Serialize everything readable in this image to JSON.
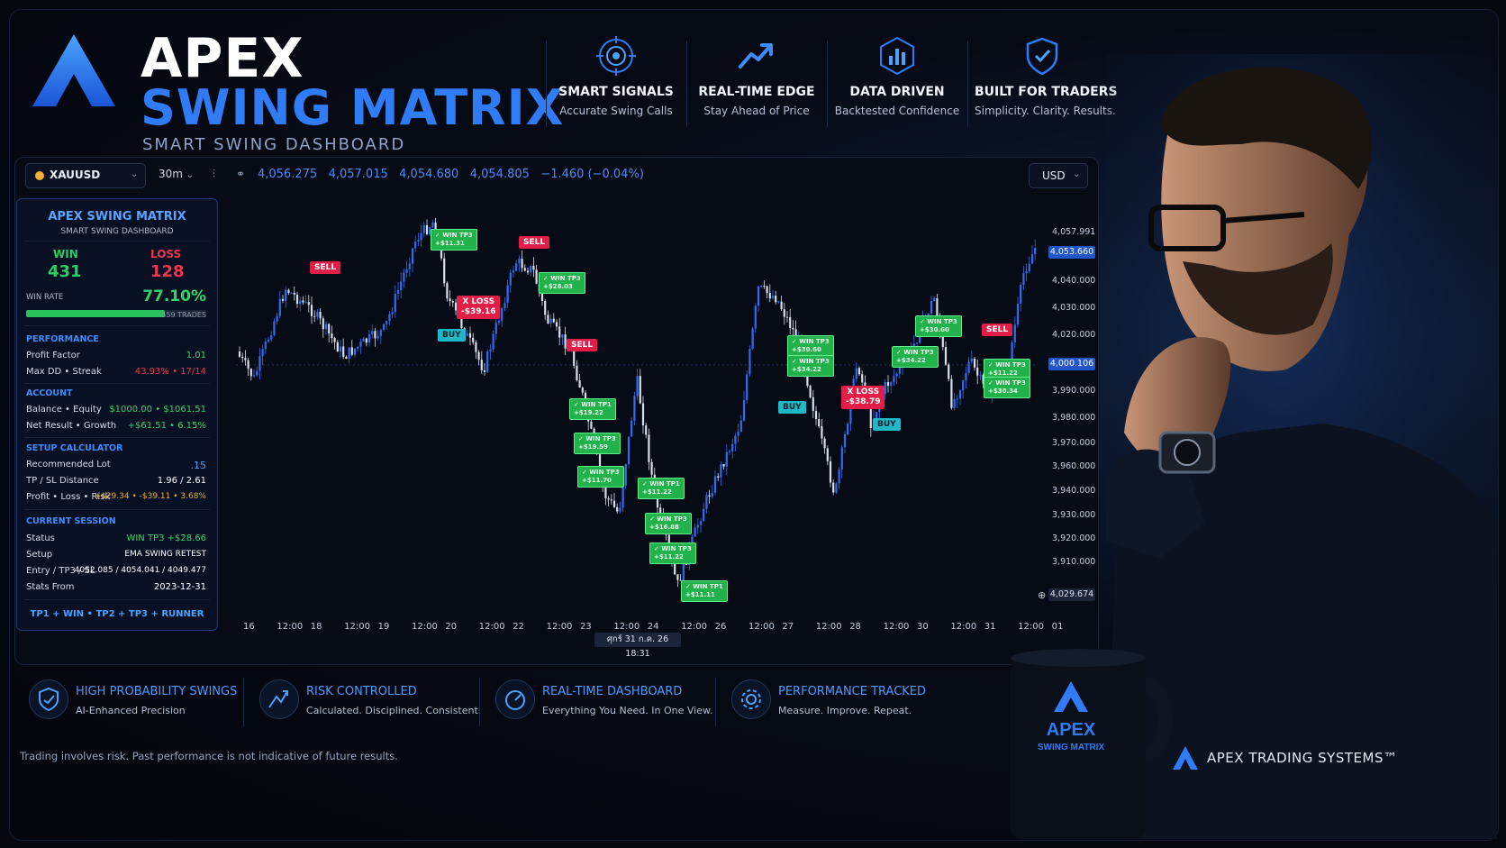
{
  "brand": {
    "line1": "APEX",
    "line2": "SWING MATRIX",
    "tagline": "SMART SWING DASHBOARD"
  },
  "features": [
    {
      "title": "SMART SIGNALS",
      "sub": "Accurate Swing Calls",
      "icon": "target-icon"
    },
    {
      "title": "REAL-TIME EDGE",
      "sub": "Stay Ahead of Price",
      "icon": "trend-up-icon"
    },
    {
      "title": "DATA DRIVEN",
      "sub": "Backtested Confidence",
      "icon": "bar-chart-icon"
    },
    {
      "title": "BUILT FOR TRADERS",
      "sub": "Simplicity. Clarity. Results.",
      "icon": "shield-check-icon"
    }
  ],
  "toolbar": {
    "symbol": "XAUUSD",
    "timeframe": "30m",
    "open": "4,056.275",
    "high": "4,057.015",
    "low": "4,054.680",
    "close": "4,054.805",
    "change": "−1.460 (−0.04%)",
    "currency": "USD"
  },
  "stats": {
    "title": "APEX SWING MATRIX",
    "subtitle": "SMART SWING DASHBOARD",
    "win_label": "WIN",
    "win": "431",
    "loss_label": "LOSS",
    "loss": "128",
    "winrate_label": "WIN RATE",
    "winrate": "77.10%",
    "winrate_fraction": 0.771,
    "trades": "559 TRADES",
    "performance": {
      "title": "PERFORMANCE",
      "pf_label": "Profit Factor",
      "pf": "1.01",
      "dd_label": "Max DD • Streak",
      "dd": "43.93% • 17/14"
    },
    "account": {
      "title": "ACCOUNT",
      "bal_label": "Balance • Equity",
      "bal": "$1000.00 • $1061.51",
      "net_label": "Net Result • Growth",
      "net": "+$61.51 • 6.15%"
    },
    "setup": {
      "title": "SETUP CALCULATOR",
      "lot_label": "Recommended Lot",
      "lot": ".15",
      "tpsl_label": "TP / SL Distance",
      "tpsl": "1.96 / 2.61",
      "plr_label": "Profit • Loss • Risk",
      "plr": "+$29.34 • -$39.11 • 3.68%"
    },
    "session": {
      "title": "CURRENT SESSION",
      "status_label": "Status",
      "status": "WIN TP3 +$28.66",
      "setup_label": "Setup",
      "setup": "EMA SWING RETEST",
      "ets_label": "Entry / TP3 / SL",
      "ets": "4052.085 / 4054.041 / 4049.477",
      "from_label": "Stats From",
      "from": "2023-12-31"
    },
    "footer": "TP1 + WIN • TP2 + TP3 + RUNNER"
  },
  "chart_data": {
    "type": "candlestick",
    "y_ticks": [
      "4,057.991",
      "4,040.000",
      "4,030.000",
      "4,020.000",
      "3,990.000",
      "3,980.000",
      "3,970.000",
      "3,960.000",
      "3,940.000",
      "3,930.000",
      "3,920.000",
      "3,910.000"
    ],
    "price_tag": "4,053.660",
    "mid_tag": "4,000.106",
    "bottom_tag": "4,029.674",
    "x_ticks": [
      "16",
      "12:00",
      "18",
      "12:00",
      "19",
      "12:00",
      "20",
      "12:00",
      "22",
      "12:00",
      "23",
      "12:00",
      "24",
      "12:00",
      "26",
      "12:00",
      "27",
      "12:00",
      "28",
      "12:00",
      "30",
      "12:00",
      "31",
      "12:00",
      "01"
    ],
    "crosshair_time": "ศุกร์ 31 ก.ค. 26   18:31",
    "signals": [
      {
        "kind": "sell",
        "text": "SELL"
      },
      {
        "kind": "sell",
        "text": "SELL"
      },
      {
        "kind": "sell",
        "text": "SELL"
      },
      {
        "kind": "sell",
        "text": "SELL"
      },
      {
        "kind": "buy",
        "text": "BUY"
      },
      {
        "kind": "buy",
        "text": "BUY"
      },
      {
        "kind": "buy",
        "text": "BUY"
      },
      {
        "kind": "loss",
        "text": "X LOSS",
        "amt": "-$39.16"
      },
      {
        "kind": "loss",
        "text": "X LOSS",
        "amt": "-$38.79"
      },
      {
        "kind": "win",
        "text": "✓ WIN TP3",
        "amt": "+$11.31"
      },
      {
        "kind": "win",
        "text": "✓ WIN TP3",
        "amt": "+$26.03"
      },
      {
        "kind": "win",
        "text": "✓ WIN TP1",
        "amt": "+$19.22"
      },
      {
        "kind": "win",
        "text": "✓ WIN TP3",
        "amt": "+$19.59"
      },
      {
        "kind": "win",
        "text": "✓ WIN TP3",
        "amt": "+$11.70"
      },
      {
        "kind": "win",
        "text": "✓ WIN TP1",
        "amt": "+$11.22"
      },
      {
        "kind": "win",
        "text": "✓ WIN TP3",
        "amt": "+$16.88"
      },
      {
        "kind": "win",
        "text": "✓ WIN TP3",
        "amt": "+$11.22"
      },
      {
        "kind": "win",
        "text": "✓ WIN TP1",
        "amt": "+$11.11"
      },
      {
        "kind": "win",
        "text": "✓ WIN TP3",
        "amt": "+$30.60"
      },
      {
        "kind": "win",
        "text": "✓ WIN TP3",
        "amt": "+$34.22"
      },
      {
        "kind": "win",
        "text": "✓ WIN TP3",
        "amt": "+$34.22"
      },
      {
        "kind": "win",
        "text": "✓ WIN TP3",
        "amt": "+$30.60"
      },
      {
        "kind": "win",
        "text": "✓ WIN TP3",
        "amt": "+$11.22"
      },
      {
        "kind": "win",
        "text": "✓ WIN TP3",
        "amt": "+$30.34"
      }
    ]
  },
  "bottom": [
    {
      "title": "HIGH PROBABILITY SWINGS",
      "sub": "AI-Enhanced Precision",
      "icon": "shield-icon"
    },
    {
      "title": "RISK CONTROLLED",
      "sub": "Calculated. Disciplined. Consistent.",
      "icon": "mountain-icon"
    },
    {
      "title": "REAL-TIME DASHBOARD",
      "sub": "Everything You Need. In One View.",
      "icon": "gauge-icon"
    },
    {
      "title": "PERFORMANCE TRACKED",
      "sub": "Measure. Improve. Repeat.",
      "icon": "gear-icon"
    }
  ],
  "disclaimer": "Trading involves risk. Past performance is not indicative of future results.",
  "company": "APEX TRADING SYSTEMS™",
  "mug": {
    "line1": "APEX",
    "line2": "SWING MATRIX"
  },
  "colors": {
    "accent": "#2f7cf6",
    "win": "#22b24c",
    "loss": "#e11d48",
    "buy": "#1fb8c9"
  }
}
